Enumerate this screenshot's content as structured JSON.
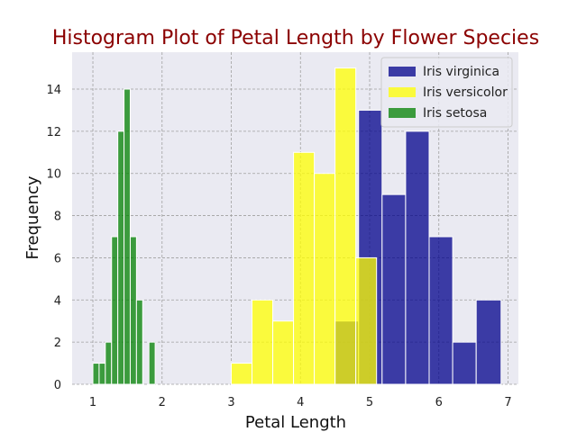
{
  "chart_data": {
    "type": "bar",
    "title": "Histogram Plot of Petal Length by Flower Species",
    "xlabel": "Petal Length",
    "ylabel": "Frequency",
    "xlim": [
      0.7,
      7.15
    ],
    "ylim": [
      0,
      15.75
    ],
    "xticks": [
      1,
      2,
      3,
      4,
      5,
      6,
      7
    ],
    "yticks": [
      0,
      2,
      4,
      6,
      8,
      10,
      12,
      14
    ],
    "grid": true,
    "legend_position": "top-right",
    "series": [
      {
        "name": "Iris virginica",
        "color": "#00008b",
        "bins": [
          {
            "x0": 4.5,
            "x1": 4.84,
            "count": 3
          },
          {
            "x0": 4.84,
            "x1": 5.18,
            "count": 13
          },
          {
            "x0": 5.18,
            "x1": 5.52,
            "count": 9
          },
          {
            "x0": 5.52,
            "x1": 5.86,
            "count": 12
          },
          {
            "x0": 5.86,
            "x1": 6.2,
            "count": 7
          },
          {
            "x0": 6.2,
            "x1": 6.54,
            "count": 2
          },
          {
            "x0": 6.54,
            "x1": 6.9,
            "count": 4
          }
        ]
      },
      {
        "name": "Iris versicolor",
        "color": "#ffff00",
        "bins": [
          {
            "x0": 3.0,
            "x1": 3.3,
            "count": 1
          },
          {
            "x0": 3.3,
            "x1": 3.6,
            "count": 4
          },
          {
            "x0": 3.6,
            "x1": 3.9,
            "count": 3
          },
          {
            "x0": 3.9,
            "x1": 4.2,
            "count": 11
          },
          {
            "x0": 4.2,
            "x1": 4.5,
            "count": 10
          },
          {
            "x0": 4.5,
            "x1": 4.8,
            "count": 15
          },
          {
            "x0": 4.8,
            "x1": 5.1,
            "count": 6
          }
        ]
      },
      {
        "name": "Iris setosa",
        "color": "#008000",
        "bins": [
          {
            "x0": 1.0,
            "x1": 1.09,
            "count": 1
          },
          {
            "x0": 1.09,
            "x1": 1.18,
            "count": 1
          },
          {
            "x0": 1.18,
            "x1": 1.27,
            "count": 2
          },
          {
            "x0": 1.27,
            "x1": 1.36,
            "count": 7
          },
          {
            "x0": 1.36,
            "x1": 1.45,
            "count": 12
          },
          {
            "x0": 1.45,
            "x1": 1.54,
            "count": 14
          },
          {
            "x0": 1.54,
            "x1": 1.63,
            "count": 7
          },
          {
            "x0": 1.63,
            "x1": 1.72,
            "count": 4
          },
          {
            "x0": 1.72,
            "x1": 1.81,
            "count": 0
          },
          {
            "x0": 1.81,
            "x1": 1.9,
            "count": 2
          }
        ]
      }
    ]
  },
  "style": {
    "title_color": "#8b0000",
    "plot_background": "#eaeaf2",
    "grid_color": "#a0a0a0"
  }
}
